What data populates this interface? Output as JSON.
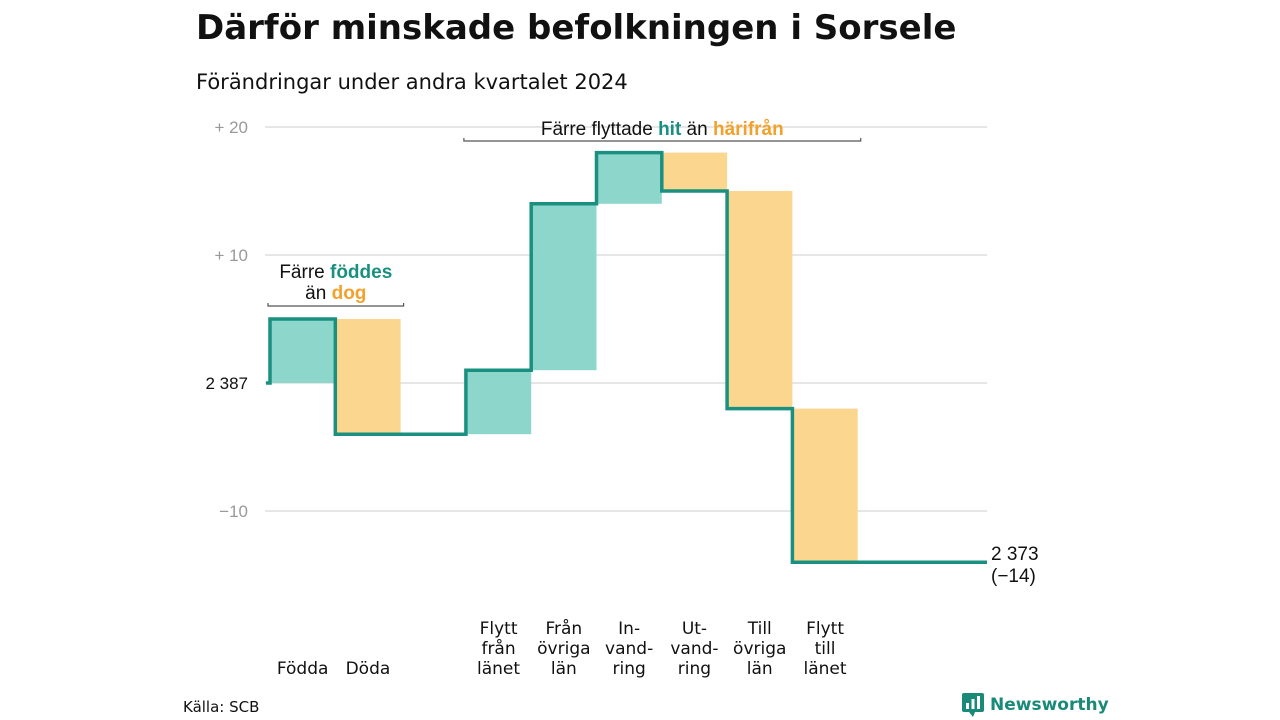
{
  "header": {
    "title": "Därför minskade befolkningen i Sorsele",
    "subtitle": "Förändringar under andra kvartalet 2024"
  },
  "footer": {
    "source": "Källa: SCB",
    "brand": "Newsworthy",
    "brand_icon": "bar-chart-speech-bubble-icon"
  },
  "colors": {
    "teal": "#1a9080",
    "teal_fill": "#8dd6cc",
    "orange": "#f2a22c",
    "orange_fill": "#fad68f",
    "grid": "#dddddd"
  },
  "chart_data": {
    "type": "waterfall",
    "baseline": 2387,
    "ylim": [
      -14,
      20
    ],
    "yticks": [
      {
        "value": 20,
        "label": "+ 20"
      },
      {
        "value": 10,
        "label": "+ 10"
      },
      {
        "value": 0,
        "label": "2 387"
      },
      {
        "value": -10,
        "label": "−10"
      }
    ],
    "steps": [
      {
        "label": [
          "Födda"
        ],
        "change": 5,
        "kind": "in"
      },
      {
        "label": [
          "Döda"
        ],
        "change": -9,
        "kind": "out"
      },
      {
        "label": [],
        "change": 0,
        "kind": "none"
      },
      {
        "label": [
          "Flytt",
          "från",
          "länet"
        ],
        "change": 5,
        "kind": "in"
      },
      {
        "label": [
          "Från",
          "övriga",
          "län"
        ],
        "change": 13,
        "kind": "in"
      },
      {
        "label": [
          "In-",
          "vand-",
          "ring"
        ],
        "change": 4,
        "kind": "in"
      },
      {
        "label": [
          "Ut-",
          "vand-",
          "ring"
        ],
        "change": -3,
        "kind": "out"
      },
      {
        "label": [
          "Till",
          "övriga",
          "län"
        ],
        "change": -17,
        "kind": "out"
      },
      {
        "label": [
          "Flytt",
          "till",
          "länet"
        ],
        "change": -12,
        "kind": "out"
      }
    ],
    "end_label": [
      "2 373",
      "(−14)"
    ],
    "annotations": [
      {
        "segments": [
          {
            "text": "Färre ",
            "color": "dark"
          },
          {
            "text": "föddes",
            "color": "teal"
          }
        ],
        "segments2": [
          {
            "text": "än ",
            "color": "dark"
          },
          {
            "text": "dog",
            "color": "orange"
          }
        ],
        "from_step": 0,
        "to_step": 1
      },
      {
        "segments": [
          {
            "text": "Färre flyttade ",
            "color": "dark"
          },
          {
            "text": "hit",
            "color": "teal"
          },
          {
            "text": " än ",
            "color": "dark"
          },
          {
            "text": "härifrån",
            "color": "orange"
          }
        ],
        "from_step": 3,
        "to_step": 8
      }
    ]
  }
}
